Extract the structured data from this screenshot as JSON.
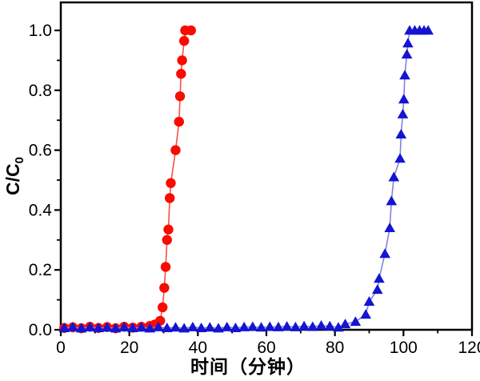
{
  "chart_data": {
    "type": "line",
    "title": "",
    "xlabel": "时间（分钟）",
    "ylabel": "C/C0",
    "ylabel_main": "C/C",
    "ylabel_sub": "0",
    "xlim": [
      0,
      120
    ],
    "ylim": [
      0,
      1.0
    ],
    "grid": false,
    "legend": "none",
    "frame": true,
    "axis_color": "#000000",
    "x_major_ticks": [
      {
        "value": 0,
        "label": "0"
      },
      {
        "value": 20,
        "label": "20"
      },
      {
        "value": 40,
        "label": "40"
      },
      {
        "value": 60,
        "label": "60"
      },
      {
        "value": 80,
        "label": "80"
      },
      {
        "value": 100,
        "label": "100"
      },
      {
        "value": 120,
        "label": "120"
      }
    ],
    "x_minor_ticks": [
      10,
      30,
      50,
      70,
      90,
      110
    ],
    "y_major_ticks": [
      {
        "value": 0,
        "label": "0.0"
      },
      {
        "value": 0.2,
        "label": "0.2"
      },
      {
        "value": 0.4,
        "label": "0.4"
      },
      {
        "value": 0.6,
        "label": "0.6"
      },
      {
        "value": 0.8,
        "label": "0.8"
      },
      {
        "value": 1.0,
        "label": "1.0"
      }
    ],
    "y_minor_ticks": [
      0.1,
      0.3,
      0.5,
      0.7,
      0.9
    ],
    "series": [
      {
        "name": "red-circle-series",
        "marker": "circle",
        "marker_color": "#fa0a00",
        "line_color": "#f44f49",
        "points": [
          [
            1,
            0.006
          ],
          [
            3.5,
            0.008
          ],
          [
            6,
            0.005
          ],
          [
            8.5,
            0.01
          ],
          [
            11,
            0.006
          ],
          [
            13.5,
            0.009
          ],
          [
            16,
            0.005
          ],
          [
            18.5,
            0.01
          ],
          [
            21,
            0.007
          ],
          [
            23.5,
            0.01
          ],
          [
            26,
            0.013
          ],
          [
            27.5,
            0.018
          ],
          [
            29,
            0.03
          ],
          [
            29.7,
            0.075
          ],
          [
            30.2,
            0.14
          ],
          [
            30.6,
            0.21
          ],
          [
            31,
            0.3
          ],
          [
            31.4,
            0.335
          ],
          [
            31.8,
            0.44
          ],
          [
            32.1,
            0.49
          ],
          [
            33.5,
            0.6
          ],
          [
            34.5,
            0.695
          ],
          [
            34.8,
            0.78
          ],
          [
            35.1,
            0.855
          ],
          [
            35.4,
            0.9
          ],
          [
            36,
            0.965
          ],
          [
            36.3,
            1.0
          ],
          [
            38,
            1.0
          ]
        ]
      },
      {
        "name": "blue-triangle-series",
        "marker": "triangle-up",
        "marker_color": "#1414d2",
        "line_color": "#8282de",
        "points": [
          [
            1,
            0.006
          ],
          [
            3.5,
            0.009
          ],
          [
            6,
            0.005
          ],
          [
            8.5,
            0.009
          ],
          [
            11,
            0.006
          ],
          [
            13.5,
            0.008
          ],
          [
            16,
            0.005
          ],
          [
            18.5,
            0.009
          ],
          [
            21,
            0.006
          ],
          [
            23.5,
            0.008
          ],
          [
            26,
            0.005
          ],
          [
            28.5,
            0.009
          ],
          [
            31,
            0.006
          ],
          [
            33.5,
            0.008
          ],
          [
            36,
            0.005
          ],
          [
            38.5,
            0.009
          ],
          [
            41,
            0.006
          ],
          [
            43.5,
            0.008
          ],
          [
            46,
            0.005
          ],
          [
            48.5,
            0.009
          ],
          [
            51,
            0.006
          ],
          [
            53.5,
            0.009
          ],
          [
            56,
            0.01
          ],
          [
            58.5,
            0.008
          ],
          [
            61,
            0.01
          ],
          [
            63.5,
            0.009
          ],
          [
            66,
            0.011
          ],
          [
            68.5,
            0.009
          ],
          [
            71,
            0.012
          ],
          [
            73.5,
            0.01
          ],
          [
            76,
            0.014
          ],
          [
            78.5,
            0.012
          ],
          [
            81,
            0.008
          ],
          [
            83,
            0.019
          ],
          [
            86,
            0.027
          ],
          [
            89,
            0.051
          ],
          [
            90,
            0.094
          ],
          [
            92.4,
            0.134
          ],
          [
            92.9,
            0.171
          ],
          [
            94.6,
            0.254
          ],
          [
            96,
            0.34
          ],
          [
            96.5,
            0.43
          ],
          [
            97.2,
            0.51
          ],
          [
            99,
            0.572
          ],
          [
            99.3,
            0.653
          ],
          [
            99.8,
            0.72
          ],
          [
            100.1,
            0.77
          ],
          [
            100.4,
            0.85
          ],
          [
            101,
            0.92
          ],
          [
            101.3,
            0.957
          ],
          [
            101.8,
            1.0
          ],
          [
            103.3,
            1.0
          ],
          [
            104.7,
            1.0
          ],
          [
            106,
            1.0
          ],
          [
            107.2,
            1.0
          ]
        ]
      }
    ]
  }
}
